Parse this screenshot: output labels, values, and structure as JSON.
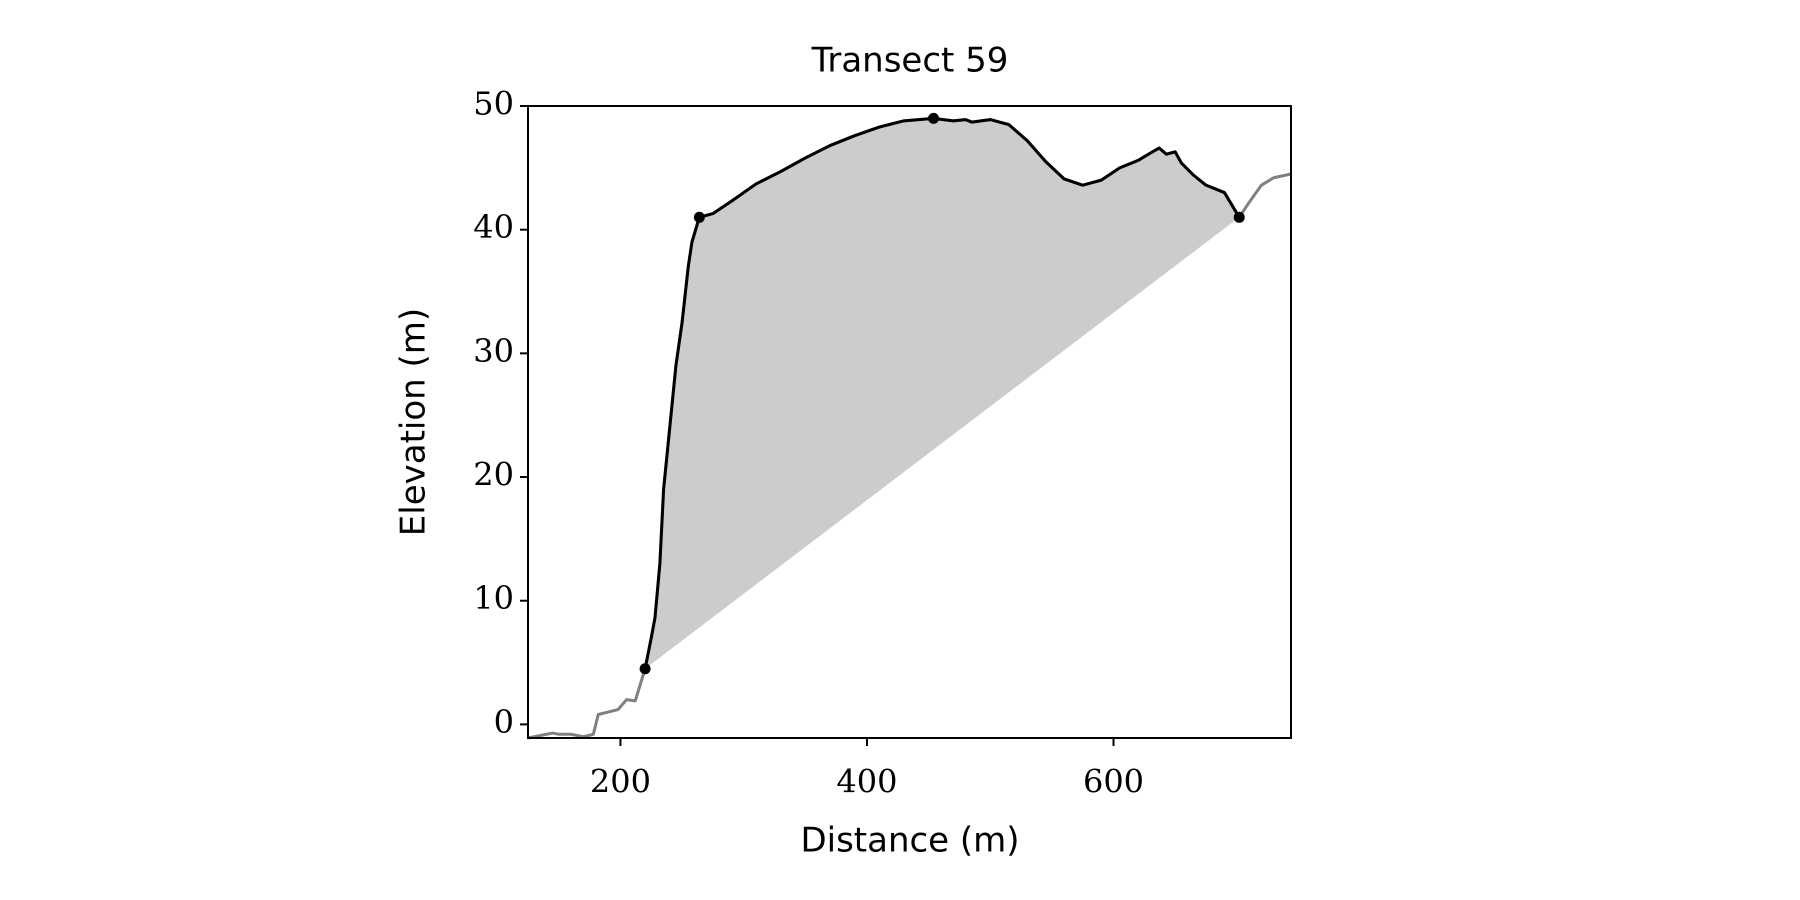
{
  "chart_data": {
    "type": "line",
    "title": "Transect 59",
    "xlabel": "Distance (m)",
    "ylabel": "Elevation (m)",
    "xlim": [
      125,
      744
    ],
    "ylim": [
      -1.1,
      50
    ],
    "xticks": [
      200,
      400,
      600
    ],
    "yticks": [
      0,
      10,
      20,
      30,
      40,
      50
    ],
    "fill_color": "#cccccc",
    "x": [
      125,
      135,
      145,
      150,
      160,
      170,
      178,
      182,
      190,
      198,
      205,
      212,
      220,
      225,
      228,
      232,
      235,
      240,
      245,
      250,
      255,
      258,
      264,
      275,
      290,
      310,
      330,
      350,
      370,
      390,
      410,
      430,
      454,
      470,
      480,
      485,
      500,
      515,
      530,
      545,
      560,
      575,
      590,
      605,
      620,
      630,
      637,
      643,
      650,
      655,
      665,
      675,
      690,
      702,
      710,
      720,
      730,
      744
    ],
    "series": [
      {
        "color": "#808080",
        "values": [
          -1.1,
          -0.9,
          -0.7,
          -0.8,
          -0.8,
          -1.0,
          -0.8,
          0.8,
          1.0,
          1.2,
          2.0,
          1.9,
          4.5,
          7,
          8.6,
          13,
          19,
          24,
          29,
          32.5,
          37,
          39,
          41,
          41.3,
          42.3,
          43.7,
          44.7,
          45.8,
          46.8,
          47.6,
          48.3,
          48.8,
          49,
          48.8,
          48.9,
          48.7,
          48.9,
          48.5,
          47.2,
          45.5,
          44.1,
          43.6,
          44.0,
          45.0,
          45.6,
          46.2,
          46.6,
          46.1,
          46.3,
          45.4,
          44.4,
          43.6,
          43.0,
          41,
          42.2,
          43.6,
          44.2,
          44.5
        ]
      },
      {
        "color": "#000000",
        "values": [
          null,
          null,
          null,
          null,
          null,
          null,
          null,
          null,
          null,
          null,
          null,
          null,
          4.5,
          7,
          8.6,
          13,
          19,
          24,
          29,
          32.5,
          37,
          39,
          41,
          41.3,
          42.3,
          43.7,
          44.7,
          45.8,
          46.8,
          47.6,
          48.3,
          48.8,
          49,
          48.8,
          48.9,
          48.7,
          48.9,
          48.5,
          47.2,
          45.5,
          44.1,
          43.6,
          44.0,
          45.0,
          45.6,
          46.2,
          46.6,
          46.1,
          46.3,
          45.4,
          44.4,
          43.6,
          43.0,
          41,
          null,
          null,
          null,
          null
        ]
      }
    ],
    "markers": {
      "color": "#000000",
      "x": [
        220,
        264,
        454,
        702
      ],
      "values": [
        4.5,
        41,
        49,
        41
      ]
    }
  }
}
